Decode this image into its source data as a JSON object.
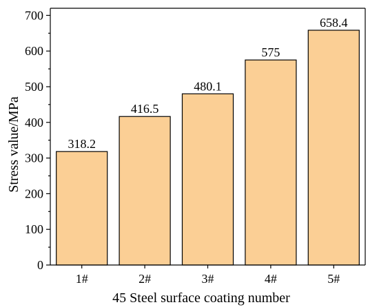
{
  "chart_data": {
    "type": "bar",
    "title": "",
    "xlabel": "45 Steel surface coating number",
    "ylabel": "Stress value/MPa",
    "categories": [
      "1#",
      "2#",
      "3#",
      "4#",
      "5#"
    ],
    "values": [
      318.2,
      416.5,
      480.1,
      575,
      658.4
    ],
    "value_labels": [
      "318.2",
      "416.5",
      "480.1",
      "575",
      "658.4"
    ],
    "ylim": [
      0,
      720
    ],
    "yticks": [
      0,
      100,
      200,
      300,
      400,
      500,
      600,
      700
    ],
    "grid": false,
    "legend": "none",
    "bar_color": "#FBCF95",
    "edge_color": "#000000"
  }
}
